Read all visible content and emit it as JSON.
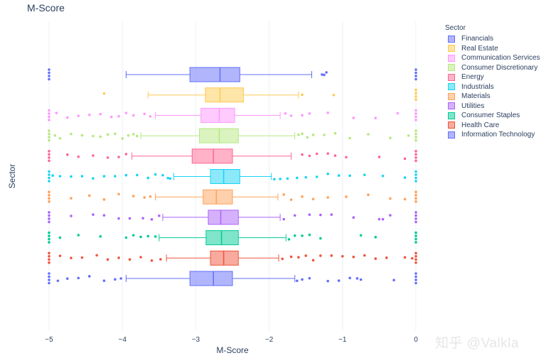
{
  "watermark": "知乎 @Valkla",
  "chart_data": {
    "type": "box",
    "orientation": "horizontal",
    "title": "M-Score",
    "xlabel": "M-Score",
    "ylabel": "Sector",
    "xlim": [
      -5,
      0
    ],
    "xticks": [
      -5,
      -4,
      -3,
      -2,
      -1,
      0
    ],
    "xtick_labels": [
      "−5",
      "−4",
      "−3",
      "−2",
      "−1",
      "0"
    ],
    "grid": true,
    "legend_title": "Sector",
    "legend_position": "top-right",
    "points": "all",
    "series": [
      {
        "name": "Financials",
        "color": "#636efa",
        "min": -3.95,
        "q1": -3.08,
        "median": -2.67,
        "q3": -2.4,
        "max": -1.42,
        "outliers": [
          -5,
          -1.28,
          -1.25,
          -1.22,
          0
        ]
      },
      {
        "name": "Real Estate",
        "color": "#fecb52",
        "min": -3.65,
        "q1": -2.87,
        "median": -2.67,
        "q3": -2.35,
        "max": -1.6,
        "outliers": [
          -4.25,
          -1.55,
          -1.12,
          0
        ]
      },
      {
        "name": "Communication Services",
        "color": "#ff97ff",
        "min": -3.55,
        "q1": -2.93,
        "median": -2.68,
        "q3": -2.47,
        "max": -1.85,
        "outliers": [
          -5,
          -4.9,
          -4.75,
          -4.6,
          -4.45,
          -4.3,
          -4.15,
          -4.05,
          -3.95,
          -3.85,
          -3.7,
          -3.62,
          -1.78,
          -1.7,
          -1.55,
          -1.45,
          -1.2,
          -0.85,
          -0.55,
          -0.25,
          0
        ]
      },
      {
        "name": "Consumer Discretionary",
        "color": "#b6e880",
        "min": -3.75,
        "q1": -2.95,
        "median": -2.68,
        "q3": -2.42,
        "max": -1.65,
        "outliers": [
          -5,
          -4.92,
          -4.85,
          -4.7,
          -4.55,
          -4.4,
          -4.3,
          -4.2,
          -4.1,
          -4.0,
          -3.92,
          -3.85,
          -3.8,
          -1.6,
          -1.55,
          -1.48,
          -1.4,
          -1.25,
          -1.1,
          -0.9,
          -0.65,
          -0.35,
          -0.1,
          0
        ]
      },
      {
        "name": "Energy",
        "color": "#ff6692",
        "min": -3.87,
        "q1": -3.05,
        "median": -2.76,
        "q3": -2.5,
        "max": -1.7,
        "outliers": [
          -5,
          -4.75,
          -4.6,
          -4.4,
          -4.2,
          -4.05,
          -3.95,
          -1.55,
          -1.45,
          -1.35,
          -1.2,
          -1.1,
          -0.95,
          -0.5,
          -0.15,
          0
        ]
      },
      {
        "name": "Industrials",
        "color": "#19d3f3",
        "min": -3.3,
        "q1": -2.8,
        "median": -2.62,
        "q3": -2.4,
        "max": -1.97,
        "outliers": [
          -5,
          -4.95,
          -4.85,
          -4.7,
          -4.55,
          -4.4,
          -4.25,
          -4.1,
          -3.95,
          -3.8,
          -3.65,
          -3.55,
          -3.45,
          -3.38,
          -3.35,
          -1.93,
          -1.85,
          -1.75,
          -1.62,
          -1.5,
          -1.35,
          -1.2,
          -1.05,
          -0.9,
          -0.7,
          -0.45,
          -0.15,
          0
        ]
      },
      {
        "name": "Materials",
        "color": "#ffa15a",
        "min": -3.55,
        "q1": -2.9,
        "median": -2.72,
        "q3": -2.5,
        "max": -1.88,
        "outliers": [
          -5,
          -4.7,
          -4.45,
          -4.25,
          -4.05,
          -3.85,
          -3.7,
          -3.62,
          -1.8,
          -1.7,
          -1.55,
          -1.4,
          -1.2,
          -0.95,
          -0.65,
          -0.35,
          -0.15,
          0
        ]
      },
      {
        "name": "Utilities",
        "color": "#ab63fa",
        "min": -3.45,
        "q1": -2.83,
        "median": -2.66,
        "q3": -2.42,
        "max": -1.85,
        "outliers": [
          -5,
          -4.7,
          -4.4,
          -4.25,
          -4.05,
          -3.9,
          -3.72,
          -3.6,
          -3.5,
          -1.8,
          -1.65,
          -1.45,
          -1.3,
          -1.15,
          -0.85,
          -0.5,
          -0.45,
          -0.35,
          0
        ]
      },
      {
        "name": "Consumer Staples",
        "color": "#00cc96",
        "min": -3.5,
        "q1": -2.86,
        "median": -2.65,
        "q3": -2.42,
        "max": -1.77,
        "outliers": [
          -5,
          -4.85,
          -4.6,
          -4.3,
          -3.95,
          -3.85,
          -3.75,
          -3.65,
          -3.55,
          -1.73,
          -1.65,
          -1.55,
          -1.45,
          -1.3,
          -0.75,
          -0.55,
          0
        ]
      },
      {
        "name": "Health Care",
        "color": "#ef553b",
        "min": -3.4,
        "q1": -2.8,
        "median": -2.62,
        "q3": -2.42,
        "max": -1.87,
        "outliers": [
          -5,
          -4.85,
          -4.7,
          -4.55,
          -4.35,
          -4.2,
          -4.05,
          -3.9,
          -3.75,
          -3.6,
          -3.48,
          -1.82,
          -1.7,
          -1.6,
          -1.5,
          -1.4,
          -1.3,
          -1.15,
          -1.0,
          -0.85,
          -0.7,
          -0.55,
          -0.4,
          -0.15,
          -0.05,
          0
        ]
      },
      {
        "name": "Information Technology",
        "color": "#636efa",
        "min": -3.95,
        "q1": -3.08,
        "median": -2.76,
        "q3": -2.5,
        "max": -1.65,
        "outliers": [
          -5,
          -4.88,
          -4.75,
          -4.6,
          -4.45,
          -4.25,
          -4.1,
          -4.02,
          -1.62,
          -1.55,
          -1.45,
          -1.2,
          -1.05,
          -0.9,
          -0.8,
          -0.75,
          -0.3,
          0
        ]
      }
    ]
  }
}
